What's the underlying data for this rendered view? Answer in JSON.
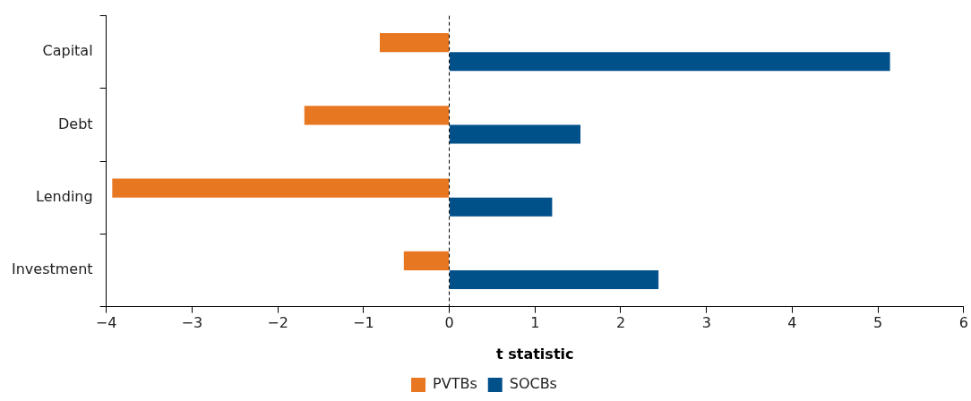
{
  "chart_data": {
    "type": "bar",
    "orientation": "horizontal",
    "xlabel": "t statistic",
    "categories": [
      "Capital",
      "Debt",
      "Lending",
      "Investment"
    ],
    "series": [
      {
        "name": "PVTBs",
        "color": "#e87722",
        "values": [
          -0.81,
          -1.69,
          -3.93,
          -0.53
        ]
      },
      {
        "name": "SOCBs",
        "color": "#00508a",
        "values": [
          5.14,
          1.53,
          1.2,
          2.44
        ]
      }
    ],
    "xlim": [
      -4,
      6
    ],
    "xticks": [
      -4,
      -3,
      -2,
      -1,
      0,
      1,
      2,
      3,
      4,
      5,
      6
    ],
    "ref_lines": [
      {
        "axis": "x",
        "value": 0,
        "line_style": "dashed",
        "color": "#000000"
      }
    ],
    "grid": false,
    "legend": "bottom"
  }
}
